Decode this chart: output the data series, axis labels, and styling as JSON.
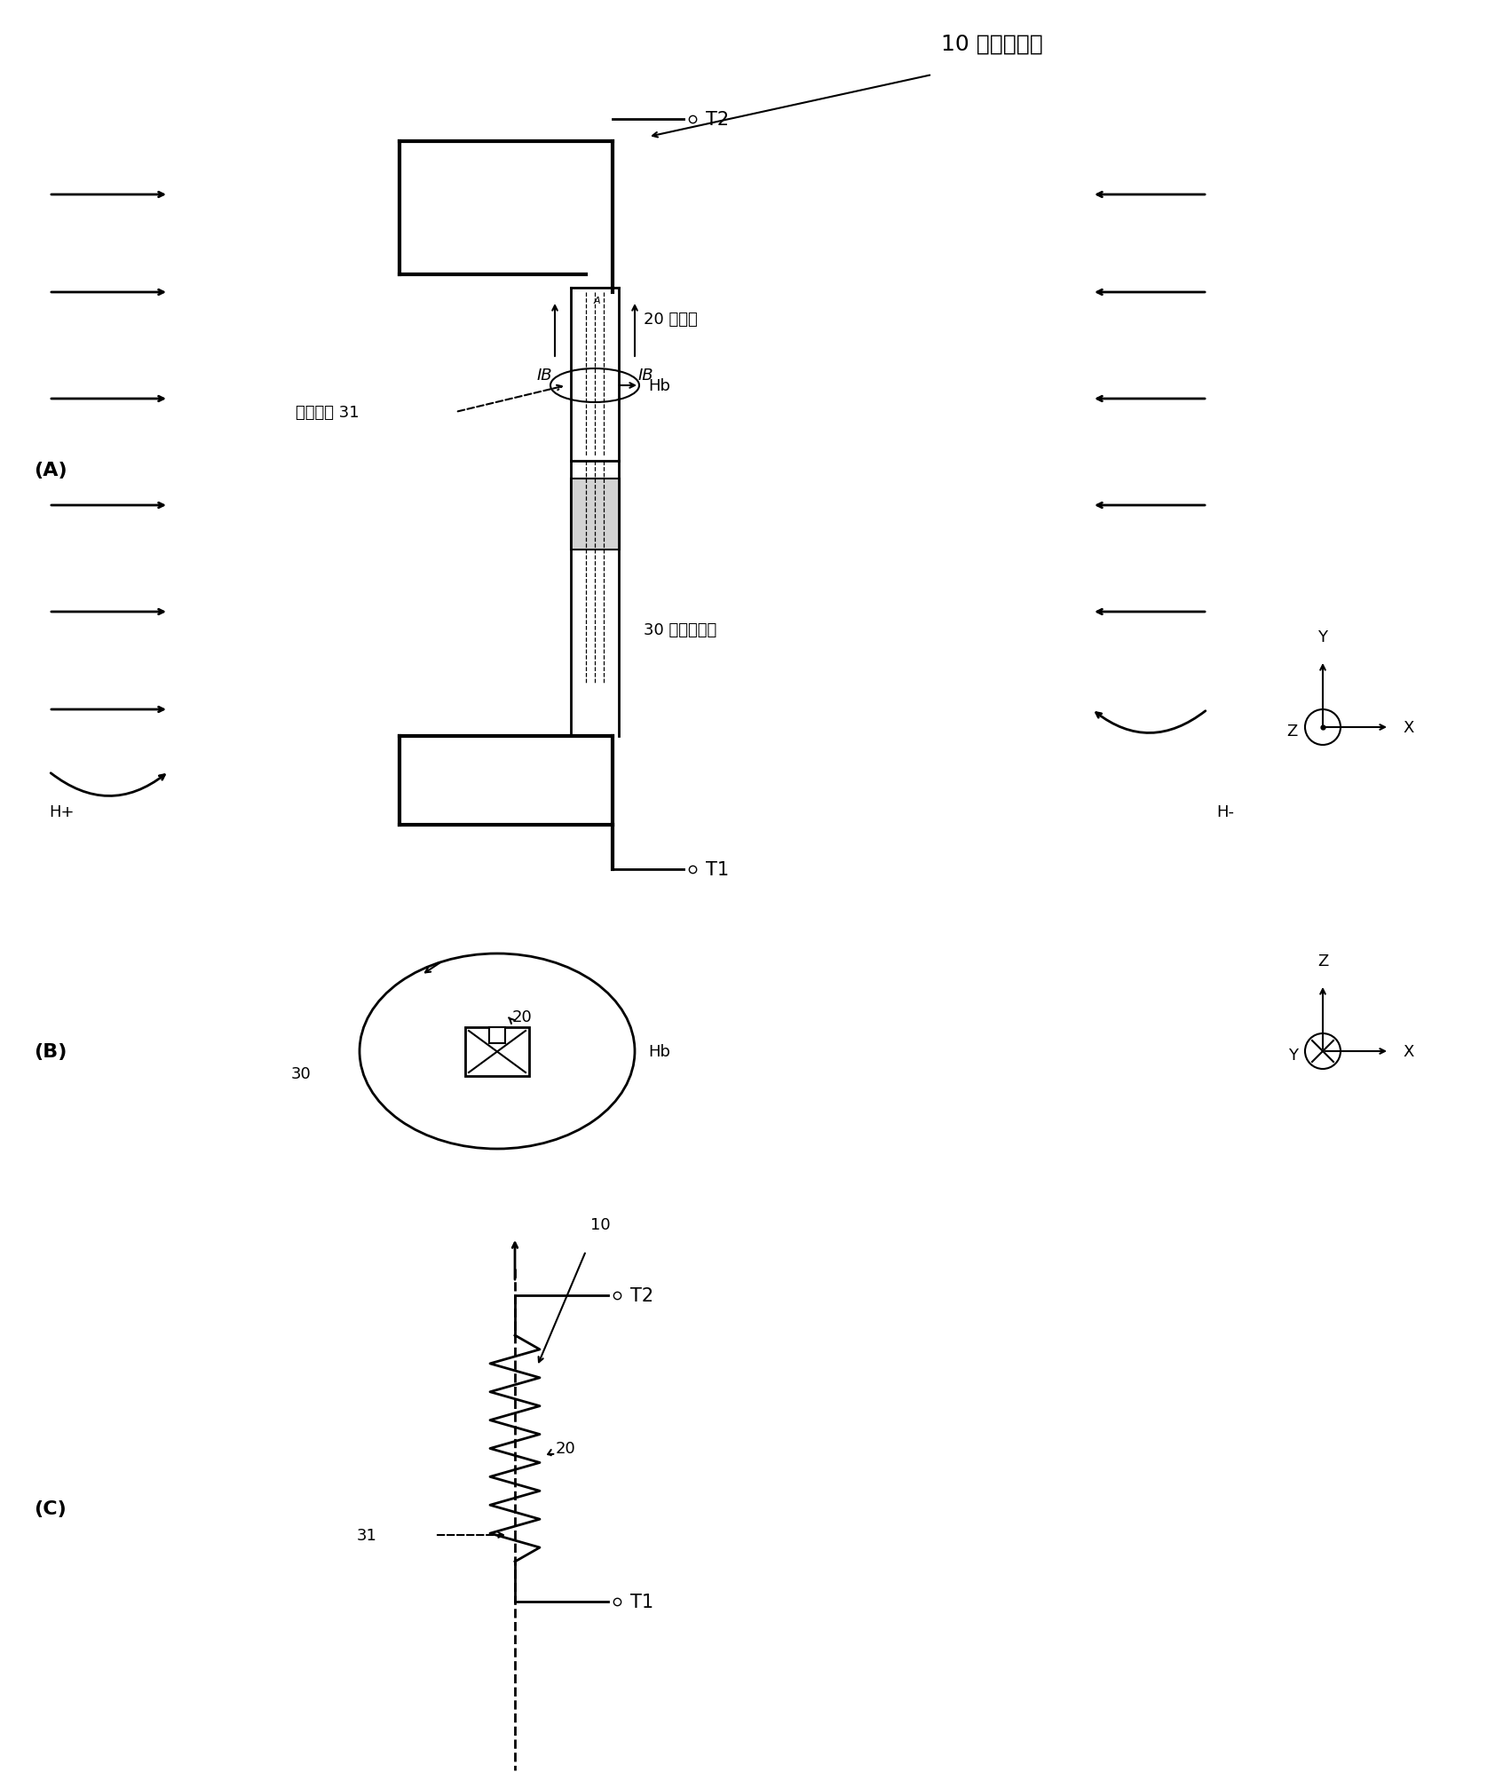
{
  "bg_color": "#ffffff",
  "fig_width": 16.93,
  "fig_height": 20.15,
  "title_text": "10 磁检测元件",
  "panel_A_label": "(A)",
  "panel_B_label": "(B)",
  "panel_C_label": "(C)",
  "label_20_A": "20 层叠体",
  "label_30_A": "30 偏置电流线",
  "label_bias_current": "偏置电流 31",
  "label_IB_left": "IB",
  "label_IB_right": "IB",
  "label_Hb_A": "Hb",
  "label_Hb_B": "Hb",
  "label_T1": "T1",
  "label_T2": "T2",
  "label_Hplus": "H+",
  "label_Hminus": "H-",
  "label_30_B": "30",
  "label_20_B": "20",
  "label_10_C": "10",
  "label_31_C": "31",
  "label_20_C": "20",
  "label_T1_C": "T1",
  "label_T2_C": "T2",
  "lw_thick": 3.0,
  "lw_med": 2.0,
  "lw_thin": 1.5,
  "fs_main": 15,
  "fs_small": 13,
  "fs_panel": 16
}
